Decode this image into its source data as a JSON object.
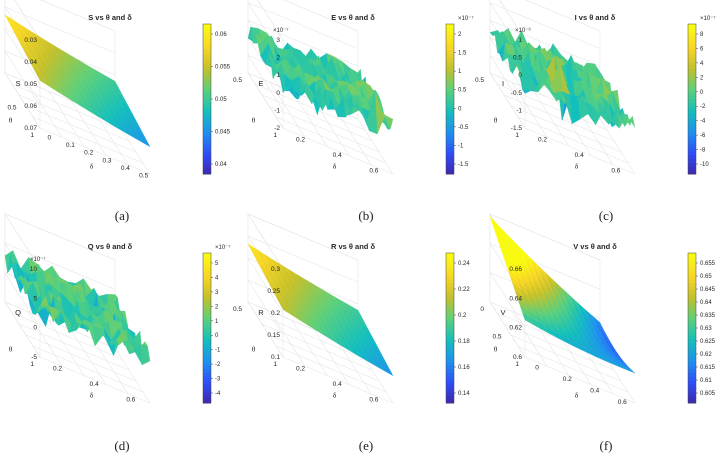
{
  "figure": {
    "panel_labels": [
      "(a)",
      "(b)",
      "(c)",
      "(d)",
      "(e)",
      "(f)"
    ]
  },
  "colormap": [
    "#3e26a8",
    "#2f4cf8",
    "#1e8ff0",
    "#12bfbd",
    "#5bd07a",
    "#c4c02a",
    "#f9d624",
    "#f9fb0e"
  ],
  "chart_data": [
    {
      "type": "surface",
      "title": "S vs θ and δ",
      "xlabel": "δ",
      "ylabel": "θ",
      "zlabel": "S",
      "x_ticks": [
        "0",
        "0.1",
        "0.2",
        "0.3",
        "0.4",
        "0.5"
      ],
      "y_ticks": [
        "0",
        "0.5",
        "1"
      ],
      "z_ticks": [
        "0.03",
        "0.04",
        "0.05",
        "0.06",
        "0.07"
      ],
      "z_multiplier": "",
      "zlim": [
        0.03,
        0.07
      ],
      "surface_range": [
        0.036,
        0.061
      ],
      "colorbar_ticks": [
        "0.06",
        "0.055",
        "0.05",
        "0.045",
        "0.04"
      ],
      "colorbar_multiplier": "",
      "shape": "smooth-decreasing"
    },
    {
      "type": "surface",
      "title": "E vs θ and δ",
      "xlabel": "δ",
      "ylabel": "θ",
      "zlabel": "E",
      "x_ticks": [
        "0.2",
        "0.4",
        "0.6"
      ],
      "y_ticks": [
        "0.5",
        "1"
      ],
      "z_ticks": [
        "3",
        "2",
        "1",
        "0",
        "-1",
        "-2"
      ],
      "z_multiplier": "×10⁻⁷",
      "zlim": [
        -2,
        3
      ],
      "surface_range": [
        -1.8,
        2.2
      ],
      "colorbar_ticks": [
        "2",
        "1.5",
        "1",
        "0.5",
        "0",
        "-0.5",
        "-1",
        "-1.5"
      ],
      "colorbar_multiplier": "×10⁻⁷",
      "shape": "noisy"
    },
    {
      "type": "surface",
      "title": "I vs θ and δ",
      "xlabel": "δ",
      "ylabel": "θ",
      "zlabel": "I",
      "x_ticks": [
        "0.2",
        "0.4",
        "0.6"
      ],
      "y_ticks": [
        "0.5",
        "1"
      ],
      "z_ticks": [
        "1",
        "0.5",
        "0",
        "-0.5",
        "-1",
        "-1.5"
      ],
      "z_multiplier": "×10⁻⁶",
      "zlim": [
        -1.5,
        1
      ],
      "surface_range": [
        -10,
        9
      ],
      "colorbar_ticks": [
        "8",
        "6",
        "4",
        "2",
        "0",
        "-2",
        "-4",
        "-6",
        "-8",
        "-10"
      ],
      "colorbar_multiplier": "×10⁻⁷",
      "shape": "noisy"
    },
    {
      "type": "surface",
      "title": "Q vs θ and δ",
      "xlabel": "δ",
      "ylabel": "θ",
      "zlabel": "Q",
      "x_ticks": [
        "0.2",
        "0.4",
        "0.6"
      ],
      "y_ticks": [
        "0.5",
        "1"
      ],
      "z_ticks": [
        "10",
        "5",
        "0",
        "-5"
      ],
      "z_multiplier": "×10⁻⁷",
      "zlim": [
        -5,
        10
      ],
      "surface_range": [
        -4.5,
        5.5
      ],
      "colorbar_ticks": [
        "5",
        "4",
        "3",
        "2",
        "1",
        "0",
        "-1",
        "-2",
        "-3",
        "-4"
      ],
      "colorbar_multiplier": "×10⁻⁷",
      "shape": "noisy"
    },
    {
      "type": "surface",
      "title": "R vs θ and δ",
      "xlabel": "δ",
      "ylabel": "θ",
      "zlabel": "R",
      "x_ticks": [
        "0.2",
        "0.4",
        "0.6"
      ],
      "y_ticks": [
        "0.5",
        "1"
      ],
      "z_ticks": [
        "0.3",
        "0.25",
        "0.2",
        "0.15",
        "0.1"
      ],
      "z_multiplier": "",
      "zlim": [
        0.1,
        0.3
      ],
      "surface_range": [
        0.138,
        0.245
      ],
      "colorbar_ticks": [
        "0.24",
        "0.22",
        "0.2",
        "0.18",
        "0.16",
        "0.14"
      ],
      "colorbar_multiplier": "",
      "shape": "smooth-decreasing"
    },
    {
      "type": "surface",
      "title": "V vs θ and δ",
      "xlabel": "δ",
      "ylabel": "θ",
      "zlabel": "V",
      "x_ticks": [
        "0",
        "0.2",
        "0.4",
        "0.6"
      ],
      "y_ticks": [
        "0",
        "0.5",
        "1"
      ],
      "z_ticks": [
        "0.66",
        "0.64",
        "0.62",
        "0.6"
      ],
      "z_multiplier": "",
      "zlim": [
        0.6,
        0.66
      ],
      "surface_range": [
        0.603,
        0.655
      ],
      "colorbar_ticks": [
        "0.655",
        "0.65",
        "0.645",
        "0.64",
        "0.635",
        "0.63",
        "0.625",
        "0.62",
        "0.615",
        "0.61",
        "0.605"
      ],
      "colorbar_multiplier": "",
      "shape": "bowl"
    }
  ]
}
